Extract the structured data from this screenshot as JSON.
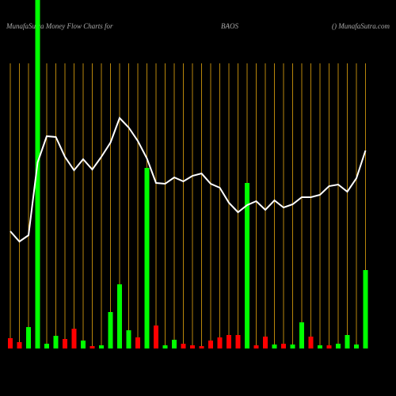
{
  "chart_data": {
    "type": "bar",
    "title": "MunafaSutra  Money Flow  Charts for",
    "symbol": "BAOS",
    "source": "() MunafaSutra.com",
    "categories": [
      null,
      null,
      null,
      null,
      null,
      null,
      null,
      null,
      null,
      null,
      null,
      null,
      null,
      null,
      null,
      null,
      null,
      null,
      null,
      null,
      null,
      null,
      null,
      null,
      null,
      null,
      null,
      null,
      null,
      null,
      null,
      null,
      null,
      null,
      null,
      null,
      null,
      null,
      null,
      null
    ],
    "series": [
      {
        "values": [
          13,
          8,
          27,
          440,
          6,
          16,
          12,
          25,
          10,
          3,
          4,
          46,
          81,
          23,
          14,
          228,
          29,
          4,
          11,
          6,
          4,
          3,
          10,
          14,
          17,
          17,
          209,
          4,
          15,
          5,
          6,
          5,
          33,
          15,
          4,
          4,
          6,
          17,
          5,
          99
        ],
        "colors": [
          "#ff0000",
          "#ff0000",
          "#00ff00",
          "#00ff00",
          "#00ff00",
          "#00ff00",
          "#ff0000",
          "#ff0000",
          "#00ff00",
          "#ff0000",
          "#00ff00",
          "#00ff00",
          "#00ff00",
          "#00ff00",
          "#ff0000",
          "#00ff00",
          "#ff0000",
          "#00ff00",
          "#00ff00",
          "#ff0000",
          "#ff0000",
          "#ff0000",
          "#ff0000",
          "#ff0000",
          "#ff0000",
          "#ff0000",
          "#00ff00",
          "#ff0000",
          "#ff0000",
          "#00ff00",
          "#ff0000",
          "#00ff00",
          "#00ff00",
          "#ff0000",
          "#00ff00",
          "#ff0000",
          "#00ff00",
          "#00ff00",
          "#00ff00",
          "#00ff00"
        ]
      },
      {
        "type": "line",
        "color": "#ffffff",
        "values": [
          148,
          135,
          143,
          235,
          268,
          267,
          242,
          225,
          239,
          226,
          242,
          260,
          291,
          279,
          262,
          240,
          209,
          208,
          216,
          211,
          218,
          221,
          208,
          203,
          184,
          172,
          181,
          186,
          175,
          187,
          178,
          182,
          191,
          191,
          194,
          205,
          207,
          198,
          215,
          250
        ]
      }
    ],
    "ylim": [
      0,
      440
    ],
    "grid_color": "#b8860b"
  }
}
